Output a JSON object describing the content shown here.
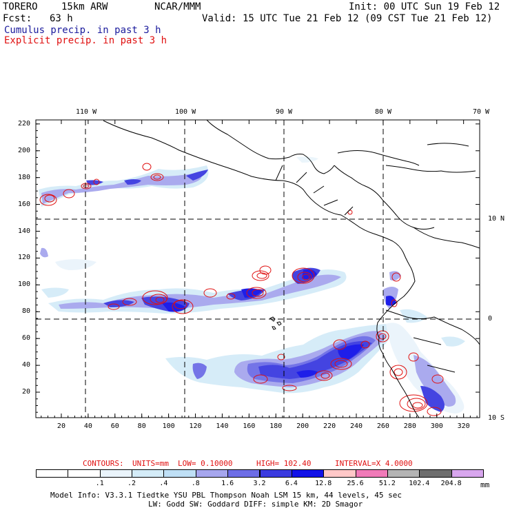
{
  "header": {
    "model": "TORERO",
    "resolution": "15km ARW",
    "org": "NCAR/MMM",
    "init": "Init: 00 UTC Sun 19 Feb 12",
    "fcst_label": "Fcst:",
    "fcst_value": "63 h",
    "valid": "Valid: 15 UTC Tue 21 Feb 12 (09 CST Tue 21 Feb 12)",
    "line_cumulus": "Cumulus precip. in past 3 h",
    "line_explicit": "Explicit precip. in past 3 h",
    "colors": {
      "cumulus": "#1a1a9c",
      "explicit": "#e01010"
    }
  },
  "map": {
    "lon_labels_top": [
      "110 W",
      "100 W",
      "90 W",
      "80 W",
      "70 W"
    ],
    "lat_labels_right": [
      "10 N",
      "0",
      "10 S"
    ],
    "y_ticks": [
      "220",
      "200",
      "180",
      "160",
      "140",
      "120",
      "100",
      "80",
      "60",
      "40",
      "20"
    ],
    "x_ticks": [
      "20",
      "40",
      "60",
      "80",
      "100",
      "120",
      "140",
      "160",
      "180",
      "200",
      "220",
      "240",
      "260",
      "280",
      "300",
      "320"
    ]
  },
  "contours_line": {
    "prefix": "CONTOURS:",
    "units": "UNITS=mm",
    "low": "LOW= 0.10000",
    "high": "HIGH= 102.40",
    "interval": "INTERVAL=X 4.0000"
  },
  "colorbar": {
    "colors": [
      "#ffffff",
      "#ffffff",
      "#eaf4fb",
      "#d4ecf8",
      "#bfe0f6",
      "#a6a6ee",
      "#6d6de6",
      "#3b3be0",
      "#1212e8",
      "#ffc8c8",
      "#f07ab8",
      "#b4b4b4",
      "#6e6e6e",
      "#d8a6ee"
    ],
    "labels": [
      ".1",
      ".2",
      ".4",
      ".8",
      "1.6",
      "3.2",
      "6.4",
      "12.8",
      "25.6",
      "51.2",
      "102.4",
      "204.8"
    ],
    "unit": "mm"
  },
  "footer": {
    "line1": "Model Info: V3.3.1   Tiedtke YSU PBL  Thompson    Noah LSM  15 km,   44 levels,   45 sec",
    "line2": "LW: Godd SW: Goddard DIFF: simple KM: 2D Smagor"
  }
}
